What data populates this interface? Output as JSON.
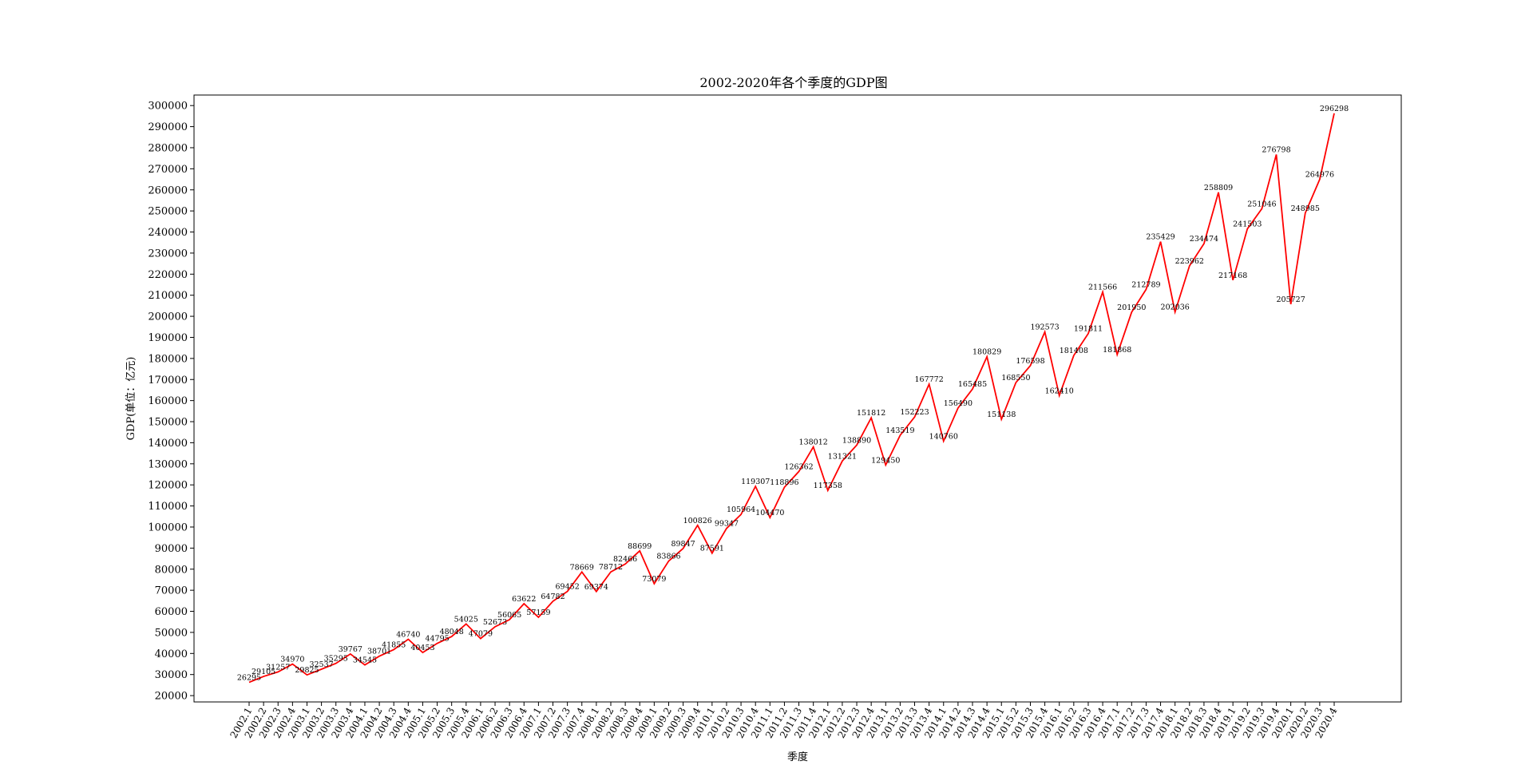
{
  "chart_data": {
    "type": "line",
    "title": "2002-2020年各个季度的GDP图",
    "xlabel": "季度",
    "ylabel": "GDP(单位：亿元)",
    "line_color": "#ff0000",
    "ylim": [
      17000,
      305000
    ],
    "yticks": [
      20000,
      30000,
      40000,
      50000,
      60000,
      70000,
      80000,
      90000,
      100000,
      110000,
      120000,
      130000,
      140000,
      150000,
      160000,
      170000,
      180000,
      190000,
      200000,
      210000,
      220000,
      230000,
      240000,
      250000,
      260000,
      270000,
      280000,
      290000,
      300000
    ],
    "grid": false,
    "categories": [
      "2002.1",
      "2002.2",
      "2002.3",
      "2002.4",
      "2003.1",
      "2003.2",
      "2003.3",
      "2003.4",
      "2004.1",
      "2004.2",
      "2004.3",
      "2004.4",
      "2005.1",
      "2005.2",
      "2005.3",
      "2005.4",
      "2006.1",
      "2006.2",
      "2006.3",
      "2006.4",
      "2007.1",
      "2007.2",
      "2007.3",
      "2007.4",
      "2008.1",
      "2008.2",
      "2008.3",
      "2008.4",
      "2009.1",
      "2009.2",
      "2009.3",
      "2009.4",
      "2010.1",
      "2010.2",
      "2010.3",
      "2010.4",
      "2011.1",
      "2011.2",
      "2011.3",
      "2011.4",
      "2012.1",
      "2012.2",
      "2012.3",
      "2012.4",
      "2013.1",
      "2013.2",
      "2013.3",
      "2013.4",
      "2014.1",
      "2014.2",
      "2014.3",
      "2014.4",
      "2015.1",
      "2015.2",
      "2015.3",
      "2015.4",
      "2016.1",
      "2016.2",
      "2016.3",
      "2016.4",
      "2017.1",
      "2017.2",
      "2017.3",
      "2017.4",
      "2018.1",
      "2018.2",
      "2018.3",
      "2018.4",
      "2019.1",
      "2019.2",
      "2019.3",
      "2019.4",
      "2020.1",
      "2020.2",
      "2020.3",
      "2020.4"
    ],
    "values": [
      26295,
      29105,
      31257,
      34970,
      29825,
      32537,
      35295,
      39767,
      34545,
      38701,
      41855,
      46740,
      40453,
      44795,
      48048,
      54025,
      47079,
      52673,
      56065,
      63622,
      57159,
      64782,
      69452,
      78669,
      69374,
      78712,
      82466,
      88699,
      73079,
      83866,
      89847,
      100826,
      87591,
      99347,
      105964,
      119307,
      104470,
      118896,
      126362,
      138012,
      117358,
      131321,
      138890,
      151812,
      129450,
      143519,
      152223,
      167772,
      140760,
      156490,
      165485,
      180829,
      151138,
      168550,
      176598,
      192573,
      162410,
      181408,
      191811,
      211566,
      181868,
      201950,
      212789,
      235429,
      202036,
      223962,
      234474,
      258809,
      217168,
      241503,
      251046,
      276798,
      205727,
      248985,
      264976,
      296298
    ]
  }
}
